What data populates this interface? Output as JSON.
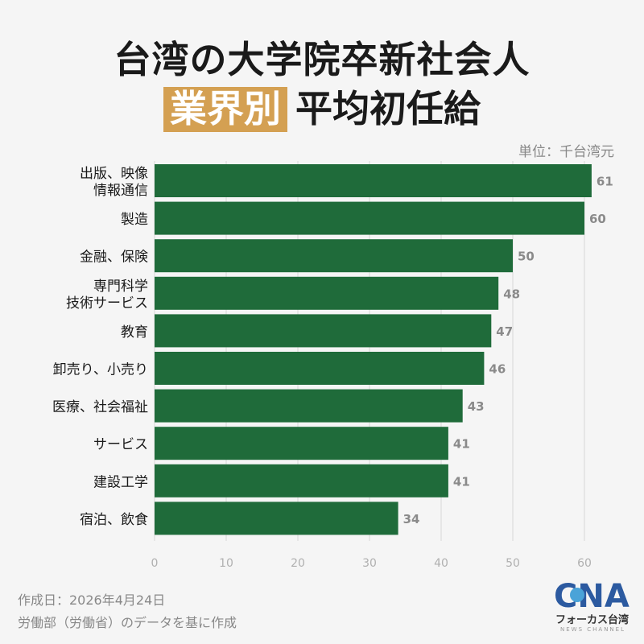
{
  "title": {
    "line1": "台湾の大学院卒新社会人",
    "highlight": "業界別",
    "line2_rest": "平均初任給"
  },
  "unit_label": "単位：千台湾元",
  "colors": {
    "bar": "#1f6b3a",
    "highlight": "#d4a052",
    "axis_text": "#b0b0b0",
    "value_text": "#8a8a8a",
    "grid": "#d8d8d8"
  },
  "chart_data": {
    "type": "bar",
    "orientation": "horizontal",
    "categories": [
      [
        "出版、映像",
        "情報通信"
      ],
      [
        "製造"
      ],
      [
        "金融、保険"
      ],
      [
        "専門科学",
        "技術サービス"
      ],
      [
        "教育"
      ],
      [
        "卸売り、小売り"
      ],
      [
        "医療、社会福祉"
      ],
      [
        "サービス"
      ],
      [
        "建設工学"
      ],
      [
        "宿泊、飲食"
      ]
    ],
    "values": [
      61,
      60,
      50,
      48,
      47,
      46,
      43,
      41,
      41,
      34
    ],
    "xlim": [
      0,
      60
    ],
    "xticks": [
      0,
      10,
      20,
      30,
      40,
      50,
      60
    ],
    "grid": true
  },
  "footer": {
    "date": "作成日：2026年4月24日",
    "source": "労働部（労働省）のデータを基に作成"
  },
  "logo": {
    "mark": "CNA",
    "name": "フォーカス台湾",
    "sub": "NEWS CHANNEL"
  }
}
